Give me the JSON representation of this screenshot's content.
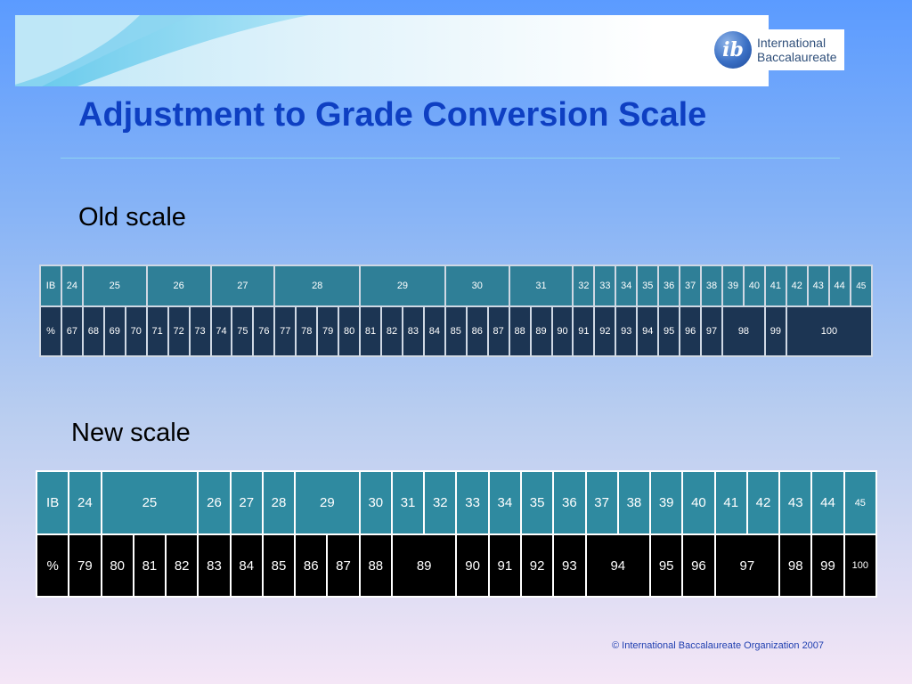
{
  "header": {
    "logo_glyph": "ib",
    "logo_line1": "International",
    "logo_line2": "Baccalaureate"
  },
  "title": "Adjustment to Grade Conversion Scale",
  "old_scale": {
    "label": "Old scale",
    "ib_row": [
      {
        "text": "IB",
        "span": 1
      },
      {
        "text": "24",
        "span": 1
      },
      {
        "text": "25",
        "span": 3
      },
      {
        "text": "26",
        "span": 3
      },
      {
        "text": "27",
        "span": 3
      },
      {
        "text": "28",
        "span": 4
      },
      {
        "text": "29",
        "span": 4
      },
      {
        "text": "30",
        "span": 3
      },
      {
        "text": "31",
        "span": 3
      },
      {
        "text": "32",
        "span": 1
      },
      {
        "text": "33",
        "span": 1
      },
      {
        "text": "34",
        "span": 1
      },
      {
        "text": "35",
        "span": 1
      },
      {
        "text": "36",
        "span": 1
      },
      {
        "text": "37",
        "span": 1
      },
      {
        "text": "38",
        "span": 1
      },
      {
        "text": "39",
        "span": 1
      },
      {
        "text": "40",
        "span": 1
      },
      {
        "text": "41",
        "span": 1
      },
      {
        "text": "42",
        "span": 1
      },
      {
        "text": "43",
        "span": 1
      },
      {
        "text": "44",
        "span": 1
      },
      {
        "text": "45",
        "span": 1
      }
    ],
    "pct_row": [
      {
        "text": "%",
        "span": 1
      },
      {
        "text": "67",
        "span": 1
      },
      {
        "text": "68",
        "span": 1
      },
      {
        "text": "69",
        "span": 1
      },
      {
        "text": "70",
        "span": 1
      },
      {
        "text": "71",
        "span": 1
      },
      {
        "text": "72",
        "span": 1
      },
      {
        "text": "73",
        "span": 1
      },
      {
        "text": "74",
        "span": 1
      },
      {
        "text": "75",
        "span": 1
      },
      {
        "text": "76",
        "span": 1
      },
      {
        "text": "77",
        "span": 1
      },
      {
        "text": "78",
        "span": 1
      },
      {
        "text": "79",
        "span": 1
      },
      {
        "text": "80",
        "span": 1
      },
      {
        "text": "81",
        "span": 1
      },
      {
        "text": "82",
        "span": 1
      },
      {
        "text": "83",
        "span": 1
      },
      {
        "text": "84",
        "span": 1
      },
      {
        "text": "85",
        "span": 1
      },
      {
        "text": "86",
        "span": 1
      },
      {
        "text": "87",
        "span": 1
      },
      {
        "text": "88",
        "span": 1
      },
      {
        "text": "89",
        "span": 1
      },
      {
        "text": "90",
        "span": 1
      },
      {
        "text": "91",
        "span": 1
      },
      {
        "text": "92",
        "span": 1
      },
      {
        "text": "93",
        "span": 1
      },
      {
        "text": "94",
        "span": 1
      },
      {
        "text": "95",
        "span": 1
      },
      {
        "text": "96",
        "span": 1
      },
      {
        "text": "97",
        "span": 1
      },
      {
        "text": "98",
        "span": 2
      },
      {
        "text": "99",
        "span": 1
      },
      {
        "text": "100",
        "span": 4
      }
    ]
  },
  "new_scale": {
    "label": "New scale",
    "ib_row": [
      {
        "text": "IB",
        "span": 1
      },
      {
        "text": "24",
        "span": 1
      },
      {
        "text": "25",
        "span": 3
      },
      {
        "text": "26",
        "span": 1
      },
      {
        "text": "27",
        "span": 1
      },
      {
        "text": "28",
        "span": 1
      },
      {
        "text": "29",
        "span": 2
      },
      {
        "text": "30",
        "span": 1
      },
      {
        "text": "31",
        "span": 1
      },
      {
        "text": "32",
        "span": 1
      },
      {
        "text": "33",
        "span": 1
      },
      {
        "text": "34",
        "span": 1
      },
      {
        "text": "35",
        "span": 1
      },
      {
        "text": "36",
        "span": 1
      },
      {
        "text": "37",
        "span": 1
      },
      {
        "text": "38",
        "span": 1
      },
      {
        "text": "39",
        "span": 1
      },
      {
        "text": "40",
        "span": 1
      },
      {
        "text": "41",
        "span": 1
      },
      {
        "text": "42",
        "span": 1
      },
      {
        "text": "43",
        "span": 1
      },
      {
        "text": "44",
        "span": 1
      },
      {
        "text": "45",
        "span": 1
      }
    ],
    "pct_row": [
      {
        "text": "%",
        "span": 1
      },
      {
        "text": "79",
        "span": 1
      },
      {
        "text": "80",
        "span": 1
      },
      {
        "text": "81",
        "span": 1
      },
      {
        "text": "82",
        "span": 1
      },
      {
        "text": "83",
        "span": 1
      },
      {
        "text": "84",
        "span": 1
      },
      {
        "text": "85",
        "span": 1
      },
      {
        "text": "86",
        "span": 1
      },
      {
        "text": "87",
        "span": 1
      },
      {
        "text": "88",
        "span": 1
      },
      {
        "text": "89",
        "span": 2
      },
      {
        "text": "90",
        "span": 1
      },
      {
        "text": "91",
        "span": 1
      },
      {
        "text": "92",
        "span": 1
      },
      {
        "text": "93",
        "span": 1
      },
      {
        "text": "94",
        "span": 2
      },
      {
        "text": "95",
        "span": 1
      },
      {
        "text": "96",
        "span": 1
      },
      {
        "text": "97",
        "span": 2
      },
      {
        "text": "98",
        "span": 1
      },
      {
        "text": "99",
        "span": 1
      },
      {
        "text": "100",
        "span": 1
      }
    ]
  },
  "footer": "© International Baccalaureate Organization 2007",
  "colors": {
    "title": "#0e3fc2",
    "old_ib_row": "#2f7f97",
    "old_pct_row": "#1c3553",
    "new_ib_row": "#2f8aa0",
    "new_pct_row": "#000000"
  }
}
